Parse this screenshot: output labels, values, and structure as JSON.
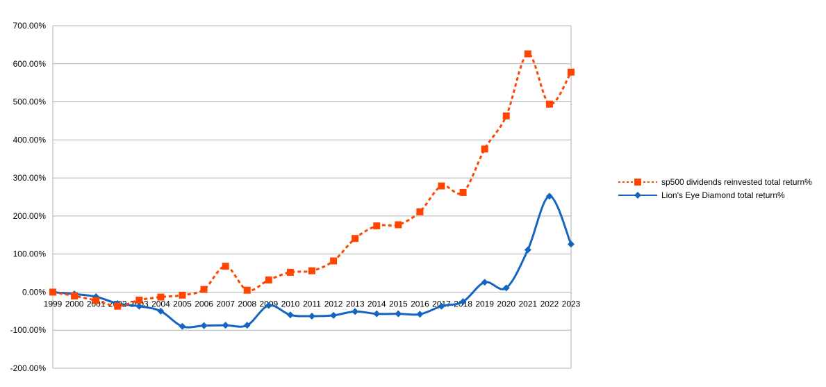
{
  "chart_data": {
    "type": "line",
    "title": "",
    "xlabel": "",
    "ylabel": "",
    "ylim": [
      -200,
      700
    ],
    "y_ticks": [
      "-200.00%",
      "-100.00%",
      "0.00%",
      "100.00%",
      "200.00%",
      "300.00%",
      "400.00%",
      "500.00%",
      "600.00%",
      "700.00%"
    ],
    "y_tick_values": [
      -200,
      -100,
      0,
      100,
      200,
      300,
      400,
      500,
      600,
      700
    ],
    "categories": [
      "1999",
      "2000",
      "2001",
      "2002",
      "2003",
      "2004",
      "2005",
      "2006",
      "2007",
      "2008",
      "2009",
      "2010",
      "2011",
      "2012",
      "2013",
      "2014",
      "2015",
      "2016",
      "2017",
      "2018",
      "2019",
      "2020",
      "2021",
      "2022",
      "2023"
    ],
    "grid": true,
    "legend_position": "right",
    "series": [
      {
        "name": "sp500 dividends reinvested total return%",
        "color": "#ff4500",
        "line_style": "dotted",
        "marker": "square",
        "values": [
          0,
          -10,
          -22,
          -37,
          -21,
          -13,
          -8,
          7,
          68,
          5,
          32,
          52,
          56,
          82,
          141,
          174,
          177,
          211,
          279,
          262,
          376,
          463,
          626,
          494,
          578
        ]
      },
      {
        "name": "Lion's Eye Diamond total return%",
        "color": "#1565c0",
        "line_style": "solid",
        "marker": "diamond",
        "values": [
          0,
          -5,
          -12,
          -30,
          -37,
          -50,
          -90,
          -88,
          -87,
          -87,
          -35,
          -60,
          -63,
          -61,
          -51,
          -57,
          -57,
          -58,
          -37,
          -25,
          26,
          11,
          111,
          252,
          126
        ]
      }
    ]
  }
}
